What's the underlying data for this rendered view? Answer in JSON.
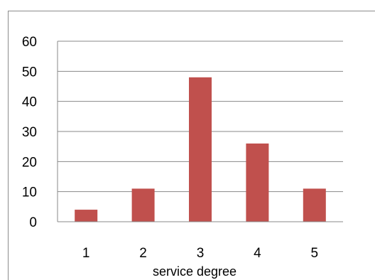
{
  "chart_data": {
    "type": "bar",
    "categories": [
      "1",
      "2",
      "3",
      "4",
      "5"
    ],
    "values": [
      4,
      11,
      48,
      26,
      11
    ],
    "title": "",
    "xlabel": "service degree",
    "ylabel": "",
    "ylim": [
      0,
      60
    ],
    "yticks": [
      "0",
      "10",
      "20",
      "30",
      "40",
      "50",
      "60"
    ],
    "grid": true,
    "legend": "none",
    "colors": {
      "bar": "#c0504d"
    }
  }
}
